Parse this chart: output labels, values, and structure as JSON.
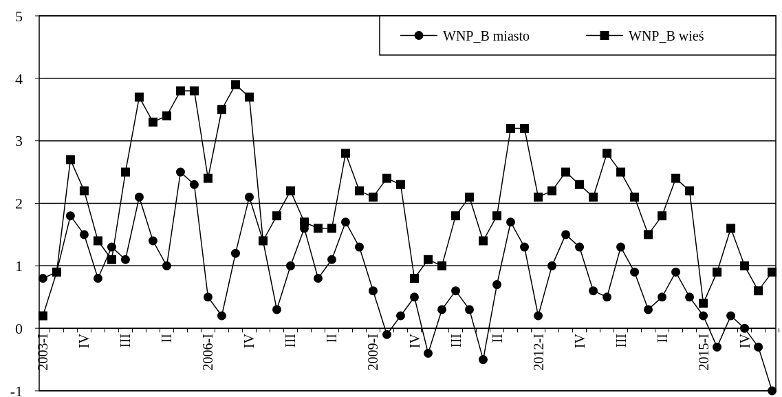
{
  "chart_data": {
    "type": "line",
    "categories": [
      "2003-I",
      null,
      null,
      "IV",
      null,
      null,
      "III",
      null,
      null,
      "II",
      null,
      null,
      "2006-I",
      null,
      null,
      "IV",
      null,
      null,
      "III",
      null,
      null,
      "II",
      null,
      null,
      "2009-I",
      null,
      null,
      "IV",
      null,
      null,
      "III",
      null,
      null,
      "II",
      null,
      null,
      "2012-I",
      null,
      null,
      "IV",
      null,
      null,
      "III",
      null,
      null,
      "II",
      null,
      null,
      "2015-I",
      null,
      null,
      "IV",
      null,
      null
    ],
    "ylim": [
      -1,
      5
    ],
    "yticks": [
      -1,
      0,
      1,
      2,
      3,
      4,
      5
    ],
    "grid": "y",
    "legend": "top right",
    "line_style": "solid",
    "series": [
      {
        "name": "WNP_B miasto",
        "color": "#000000",
        "marker": "circle",
        "values": [
          0.8,
          0.9,
          1.8,
          1.5,
          0.8,
          1.3,
          1.1,
          2.1,
          1.4,
          1.0,
          2.5,
          2.3,
          0.5,
          0.2,
          1.2,
          2.1,
          1.4,
          0.3,
          1.0,
          1.6,
          0.8,
          1.1,
          1.7,
          1.3,
          0.6,
          -0.1,
          0.2,
          0.5,
          -0.4,
          0.3,
          0.6,
          0.3,
          -0.5,
          0.7,
          1.7,
          1.3,
          0.2,
          1.0,
          1.5,
          1.3,
          0.6,
          0.5,
          1.3,
          0.9,
          0.3,
          0.5,
          0.9,
          0.5,
          0.2,
          -0.3,
          0.2,
          0.0,
          -0.3,
          -1.0
        ]
      },
      {
        "name": "WNP_B wieś",
        "color": "#000000",
        "marker": "square",
        "values": [
          0.2,
          0.9,
          2.7,
          2.2,
          1.4,
          1.1,
          2.5,
          3.7,
          3.3,
          3.4,
          3.8,
          3.8,
          2.4,
          3.5,
          3.9,
          3.7,
          1.4,
          1.8,
          2.2,
          1.7,
          1.6,
          1.6,
          2.8,
          2.2,
          2.1,
          2.4,
          2.3,
          0.8,
          1.1,
          1.0,
          1.8,
          2.1,
          1.4,
          1.8,
          3.2,
          3.2,
          2.1,
          2.2,
          2.5,
          2.3,
          2.1,
          2.8,
          2.5,
          2.1,
          1.5,
          1.8,
          2.4,
          2.2,
          0.4,
          0.9,
          1.6,
          1.0,
          0.6,
          0.9
        ]
      }
    ]
  }
}
